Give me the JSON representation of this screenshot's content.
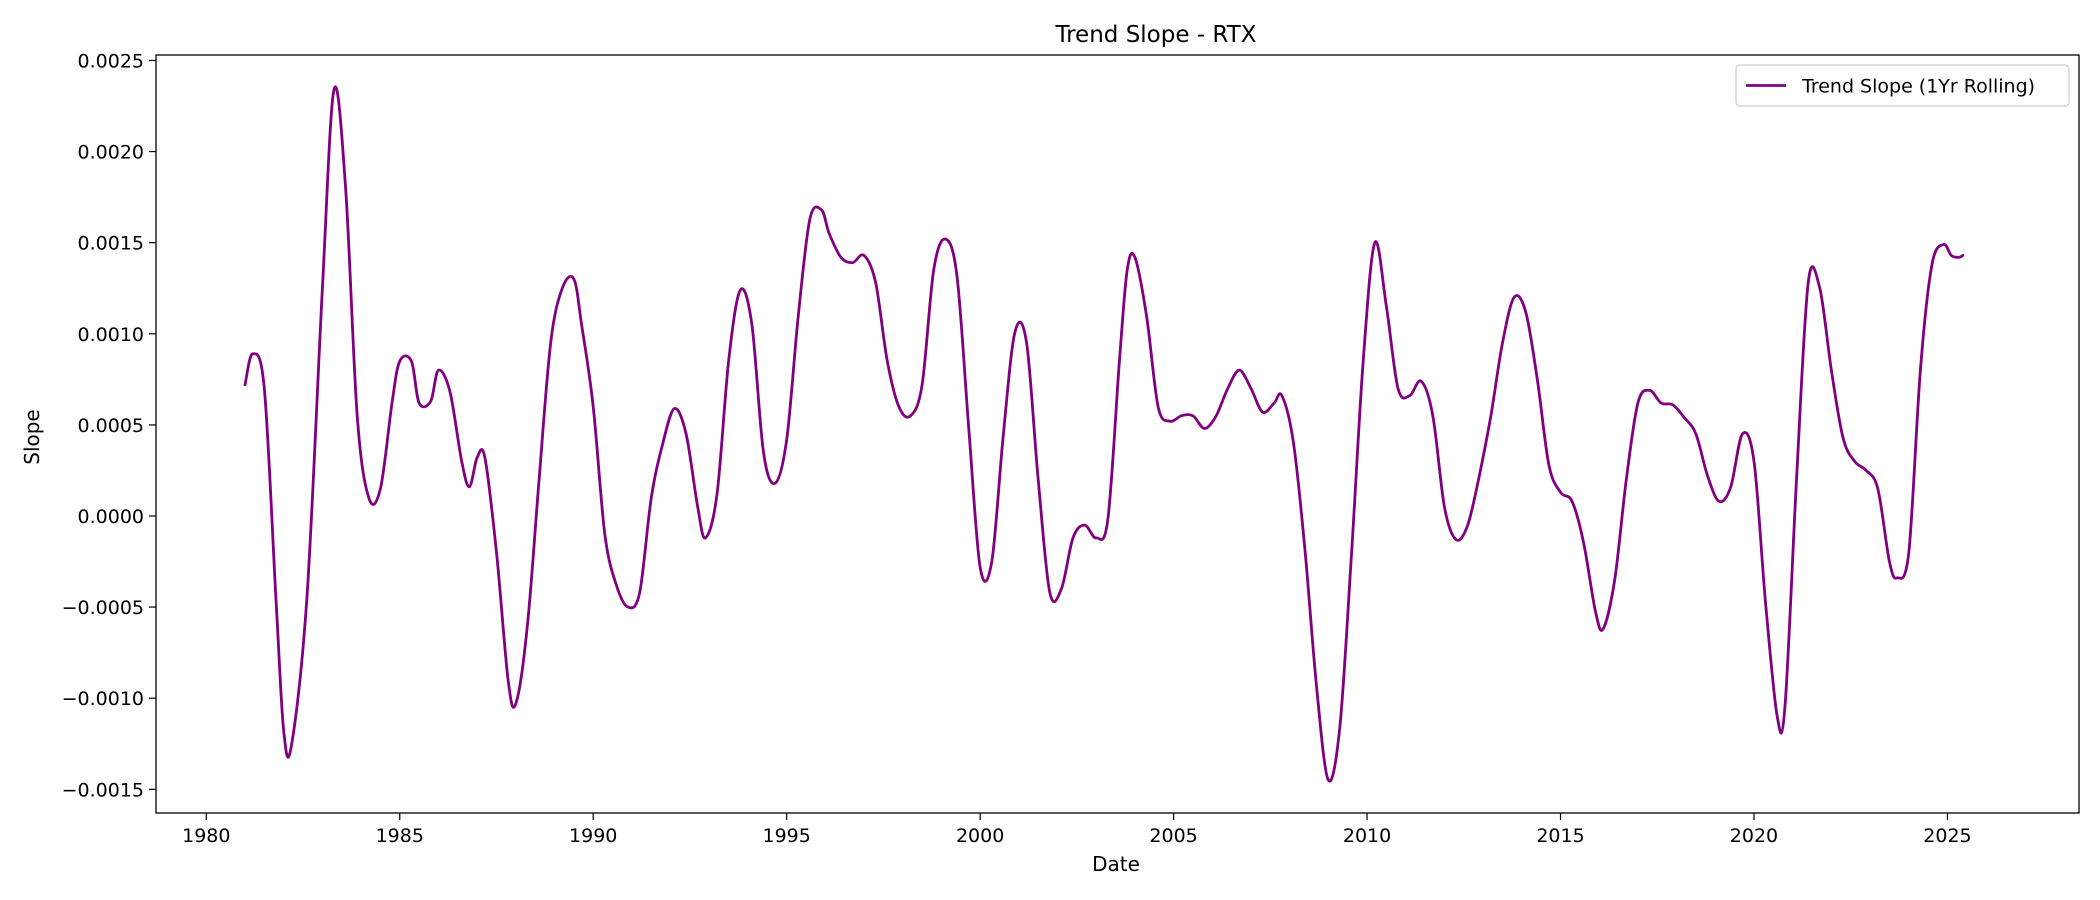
{
  "chart_data": {
    "type": "line",
    "title": "Trend Slope - RTX",
    "xlabel": "Date",
    "ylabel": "Slope",
    "xlim": [
      1978.7,
      2028.4
    ],
    "ylim": [
      -0.00163,
      0.00253
    ],
    "xticks": [
      1980,
      1985,
      1990,
      1995,
      2000,
      2005,
      2010,
      2015,
      2020,
      2025
    ],
    "xtick_labels": [
      "1980",
      "1985",
      "1990",
      "1995",
      "2000",
      "2005",
      "2010",
      "2015",
      "2020",
      "2025"
    ],
    "yticks": [
      -0.0015,
      -0.001,
      -0.0005,
      0.0,
      0.0005,
      0.001,
      0.0015,
      0.002,
      0.0025
    ],
    "ytick_labels": [
      "−0.0015",
      "−0.0010",
      "−0.0005",
      "0.0000",
      "0.0005",
      "0.0010",
      "0.0015",
      "0.0020",
      "0.0025"
    ],
    "grid": false,
    "legend": {
      "position": "top-right"
    },
    "series": [
      {
        "name": "Trend Slope (1Yr Rolling)",
        "color": "#800080",
        "x": [
          1981.0,
          1981.2,
          1981.5,
          1981.8,
          1982.0,
          1982.2,
          1982.6,
          1983.0,
          1983.3,
          1983.6,
          1983.9,
          1984.2,
          1984.5,
          1984.8,
          1985.0,
          1985.3,
          1985.5,
          1985.8,
          1986.0,
          1986.3,
          1986.6,
          1986.8,
          1987.0,
          1987.2,
          1987.5,
          1987.8,
          1988.0,
          1988.3,
          1988.6,
          1988.9,
          1989.2,
          1989.5,
          1989.7,
          1990.0,
          1990.3,
          1990.6,
          1990.9,
          1991.2,
          1991.5,
          1991.8,
          1992.1,
          1992.4,
          1992.7,
          1992.9,
          1993.2,
          1993.5,
          1993.8,
          1994.1,
          1994.4,
          1994.7,
          1995.0,
          1995.3,
          1995.6,
          1995.9,
          1996.1,
          1996.4,
          1996.7,
          1997.0,
          1997.3,
          1997.6,
          1997.9,
          1998.2,
          1998.5,
          1998.8,
          1999.1,
          1999.4,
          1999.7,
          2000.0,
          2000.3,
          2000.6,
          2000.9,
          2001.2,
          2001.5,
          2001.8,
          2002.1,
          2002.4,
          2002.7,
          2003.0,
          2003.3,
          2003.6,
          2003.8,
          2004.0,
          2004.3,
          2004.6,
          2004.9,
          2005.2,
          2005.5,
          2005.8,
          2006.1,
          2006.4,
          2006.7,
          2007.0,
          2007.3,
          2007.6,
          2007.8,
          2008.1,
          2008.4,
          2008.7,
          2009.0,
          2009.3,
          2009.6,
          2009.9,
          2010.2,
          2010.5,
          2010.8,
          2011.1,
          2011.4,
          2011.7,
          2012.0,
          2012.3,
          2012.6,
          2012.9,
          2013.2,
          2013.5,
          2013.8,
          2014.1,
          2014.4,
          2014.7,
          2015.0,
          2015.3,
          2015.6,
          2015.9,
          2016.1,
          2016.4,
          2016.7,
          2017.0,
          2017.3,
          2017.6,
          2017.9,
          2018.2,
          2018.5,
          2018.8,
          2019.1,
          2019.4,
          2019.7,
          2020.0,
          2020.3,
          2020.6,
          2020.8,
          2021.1,
          2021.4,
          2021.7,
          2022.0,
          2022.3,
          2022.6,
          2022.9,
          2023.2,
          2023.5,
          2023.7,
          2024.0,
          2024.3,
          2024.6,
          2024.9,
          2025.1,
          2025.3,
          2025.4
        ],
        "y": [
          0.00072,
          0.00089,
          0.0007,
          -0.00045,
          -0.00118,
          -0.00126,
          -0.00045,
          0.00125,
          0.00234,
          0.0018,
          0.00055,
          0.0001,
          0.00015,
          0.00062,
          0.00085,
          0.00085,
          0.00062,
          0.00063,
          0.0008,
          0.00068,
          0.0003,
          0.00016,
          0.00032,
          0.00032,
          -0.0002,
          -0.0009,
          -0.00103,
          -0.0006,
          0.0002,
          0.00095,
          0.00125,
          0.0013,
          0.00105,
          0.0006,
          -0.0001,
          -0.00038,
          -0.0005,
          -0.00042,
          0.0001,
          0.0004,
          0.00059,
          0.00045,
          5e-05,
          -0.00012,
          0.00012,
          0.00085,
          0.00124,
          0.00105,
          0.00035,
          0.00018,
          0.00042,
          0.0011,
          0.00163,
          0.00168,
          0.00155,
          0.00142,
          0.00139,
          0.00143,
          0.00128,
          0.00085,
          0.0006,
          0.00055,
          0.00072,
          0.00135,
          0.00152,
          0.00132,
          0.0005,
          -0.00028,
          -0.00025,
          0.00045,
          0.00101,
          0.00095,
          0.0002,
          -0.00042,
          -0.0004,
          -0.00012,
          -5e-05,
          -0.00012,
          -2e-05,
          0.00085,
          0.00135,
          0.00142,
          0.0011,
          0.0006,
          0.00052,
          0.00055,
          0.00055,
          0.00048,
          0.00055,
          0.0007,
          0.0008,
          0.0007,
          0.00057,
          0.00062,
          0.00066,
          0.0004,
          -0.0002,
          -0.00095,
          -0.00145,
          -0.00115,
          -0.0002,
          0.00085,
          0.0015,
          0.00115,
          0.0007,
          0.00066,
          0.00074,
          0.00055,
          5e-05,
          -0.00013,
          -5e-05,
          0.00022,
          0.00055,
          0.00095,
          0.0012,
          0.00112,
          0.00075,
          0.00028,
          0.00013,
          8e-05,
          -0.00015,
          -0.00052,
          -0.00062,
          -0.00035,
          0.0002,
          0.00062,
          0.00069,
          0.00062,
          0.00061,
          0.00054,
          0.00045,
          0.00022,
          8e-05,
          0.00016,
          0.00045,
          0.0003,
          -0.00048,
          -0.0011,
          -0.00105,
          0.0002,
          0.00128,
          0.00125,
          0.0008,
          0.00043,
          0.0003,
          0.00025,
          0.00015,
          -0.00025,
          -0.00034,
          -0.0002,
          0.0008,
          0.00138,
          0.00149,
          0.00143,
          0.00142,
          0.00143
        ]
      }
    ]
  }
}
